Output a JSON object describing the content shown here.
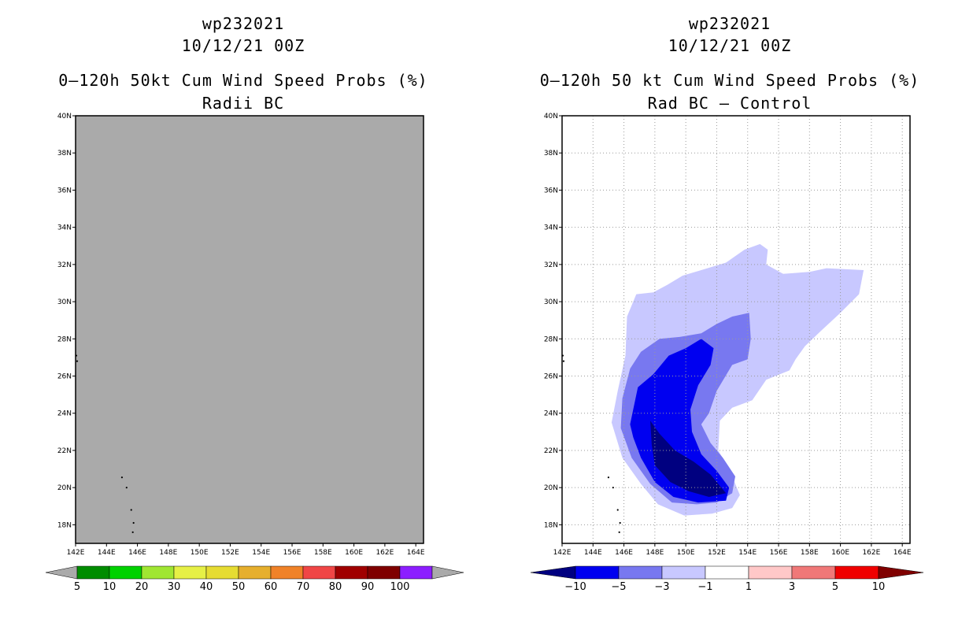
{
  "chart_data": [
    {
      "type": "heatmap",
      "title_lines": [
        "wp232021",
        "10/12/21 00Z",
        "0–120h 50kt Cum Wind Speed Probs (%)",
        "Radii BC"
      ],
      "xlabel": "",
      "ylabel": "",
      "xlim": [
        142,
        164.5
      ],
      "ylim": [
        17,
        40
      ],
      "x_ticks": [
        "142E",
        "144E",
        "146E",
        "148E",
        "150E",
        "152E",
        "154E",
        "156E",
        "158E",
        "160E",
        "162E",
        "164E"
      ],
      "y_ticks": [
        "18N",
        "20N",
        "22N",
        "24N",
        "26N",
        "28N",
        "30N",
        "32N",
        "34N",
        "36N",
        "38N",
        "40N"
      ],
      "x_tick_values": [
        142,
        144,
        146,
        148,
        150,
        152,
        154,
        156,
        158,
        160,
        162,
        164
      ],
      "y_tick_values": [
        18,
        20,
        22,
        24,
        26,
        28,
        30,
        32,
        34,
        36,
        38,
        40
      ],
      "grid": false,
      "field_fill": "#aaaaaa",
      "field_description": "entire domain below 5%",
      "colorbar": {
        "labels": [
          "5",
          "10",
          "20",
          "30",
          "40",
          "50",
          "60",
          "70",
          "80",
          "90",
          "100"
        ],
        "colors": [
          "#008c00",
          "#00d200",
          "#a0e632",
          "#e6f046",
          "#e6dc32",
          "#e6af2d",
          "#f08228",
          "#f04646",
          "#a00000",
          "#7f0000",
          "#8c1eff"
        ],
        "end_color": "#aaaaaa"
      }
    },
    {
      "type": "heatmap",
      "title_lines": [
        "wp232021",
        "10/12/21 00Z",
        "0–120h 50 kt Cum Wind Speed Probs (%)",
        "Rad BC – Control"
      ],
      "xlabel": "",
      "ylabel": "",
      "xlim": [
        142,
        164.5
      ],
      "ylim": [
        17,
        40
      ],
      "x_ticks": [
        "142E",
        "144E",
        "146E",
        "148E",
        "150E",
        "152E",
        "154E",
        "156E",
        "158E",
        "160E",
        "162E",
        "164E"
      ],
      "y_ticks": [
        "18N",
        "20N",
        "22N",
        "24N",
        "26N",
        "28N",
        "30N",
        "32N",
        "34N",
        "36N",
        "38N",
        "40N"
      ],
      "x_tick_values": [
        142,
        144,
        146,
        148,
        150,
        152,
        154,
        156,
        158,
        160,
        162,
        164
      ],
      "y_tick_values": [
        18,
        20,
        22,
        24,
        26,
        28,
        30,
        32,
        34,
        36,
        38,
        40
      ],
      "grid": true,
      "contours": [
        {
          "level": "-1 to -3",
          "color": "#c8c8ff",
          "lonlat": [
            [
              146.8,
              30.4
            ],
            [
              147.9,
              30.5
            ],
            [
              148.8,
              30.9
            ],
            [
              149.8,
              31.4
            ],
            [
              151.0,
              31.7
            ],
            [
              152.6,
              32.1
            ],
            [
              153.8,
              32.8
            ],
            [
              154.8,
              33.1
            ],
            [
              155.3,
              32.8
            ],
            [
              155.2,
              32.0
            ],
            [
              156.3,
              31.5
            ],
            [
              158.0,
              31.6
            ],
            [
              159.1,
              31.8
            ],
            [
              161.5,
              31.7
            ],
            [
              161.2,
              30.4
            ],
            [
              160.0,
              29.4
            ],
            [
              158.7,
              28.4
            ],
            [
              157.7,
              27.6
            ],
            [
              157.1,
              26.9
            ],
            [
              156.7,
              26.3
            ],
            [
              155.2,
              25.8
            ],
            [
              154.3,
              24.7
            ],
            [
              153.0,
              24.3
            ],
            [
              152.2,
              23.6
            ],
            [
              152.1,
              22.0
            ],
            [
              152.8,
              21.0
            ],
            [
              153.5,
              19.6
            ],
            [
              153.0,
              18.9
            ],
            [
              151.7,
              18.6
            ],
            [
              149.9,
              18.5
            ],
            [
              148.2,
              19.1
            ],
            [
              147.1,
              20.2
            ],
            [
              145.9,
              21.6
            ],
            [
              145.2,
              23.5
            ],
            [
              145.6,
              25.2
            ],
            [
              146.1,
              27.1
            ],
            [
              146.2,
              29.2
            ]
          ]
        },
        {
          "level": "-3 to -5",
          "color": "#7878f0",
          "lonlat": [
            [
              146.4,
              26.4
            ],
            [
              147.1,
              27.3
            ],
            [
              148.3,
              28.0
            ],
            [
              149.6,
              28.1
            ],
            [
              151.0,
              28.3
            ],
            [
              152.0,
              28.8
            ],
            [
              153.0,
              29.2
            ],
            [
              154.1,
              29.4
            ],
            [
              154.2,
              28.0
            ],
            [
              154.0,
              26.9
            ],
            [
              153.0,
              26.6
            ],
            [
              152.0,
              25.2
            ],
            [
              151.5,
              24.0
            ],
            [
              151.0,
              23.4
            ],
            [
              151.6,
              22.4
            ],
            [
              152.4,
              21.6
            ],
            [
              153.2,
              20.6
            ],
            [
              153.0,
              19.7
            ],
            [
              152.0,
              19.2
            ],
            [
              150.7,
              19.1
            ],
            [
              149.1,
              19.2
            ],
            [
              147.7,
              20.2
            ],
            [
              146.5,
              21.6
            ],
            [
              145.8,
              23.2
            ],
            [
              145.9,
              24.8
            ]
          ]
        },
        {
          "level": "-5 to -10",
          "color": "#0000f0",
          "lonlat": [
            [
              146.4,
              23.4
            ],
            [
              146.9,
              25.4
            ],
            [
              147.9,
              26.1
            ],
            [
              148.9,
              27.1
            ],
            [
              150.0,
              27.5
            ],
            [
              151.0,
              28.0
            ],
            [
              151.8,
              27.5
            ],
            [
              151.6,
              26.6
            ],
            [
              150.8,
              25.5
            ],
            [
              150.3,
              24.2
            ],
            [
              150.4,
              23.0
            ],
            [
              151.0,
              21.8
            ],
            [
              152.0,
              20.9
            ],
            [
              152.8,
              20.0
            ],
            [
              152.6,
              19.3
            ],
            [
              150.8,
              19.2
            ],
            [
              149.2,
              19.5
            ],
            [
              148.0,
              20.3
            ],
            [
              147.1,
              21.6
            ],
            [
              146.6,
              22.7
            ]
          ]
        },
        {
          "level": "< -10",
          "color": "#000080",
          "lonlat": [
            [
              147.7,
              23.6
            ],
            [
              148.3,
              22.9
            ],
            [
              149.3,
              22.0
            ],
            [
              150.5,
              21.4
            ],
            [
              151.6,
              20.7
            ],
            [
              152.6,
              19.7
            ],
            [
              151.5,
              19.5
            ],
            [
              150.2,
              19.8
            ],
            [
              149.0,
              20.3
            ],
            [
              148.0,
              21.2
            ],
            [
              147.8,
              22.3
            ]
          ]
        }
      ],
      "colorbar": {
        "labels": [
          "−10",
          "−5",
          "−3",
          "−1",
          "1",
          "3",
          "5",
          "10"
        ],
        "colors": [
          "#0000f0",
          "#7878f0",
          "#c8c8ff",
          "#ffffff",
          "#ffc8c8",
          "#f07878",
          "#f00000"
        ],
        "low_color": "#000080",
        "high_color": "#800000"
      }
    }
  ]
}
